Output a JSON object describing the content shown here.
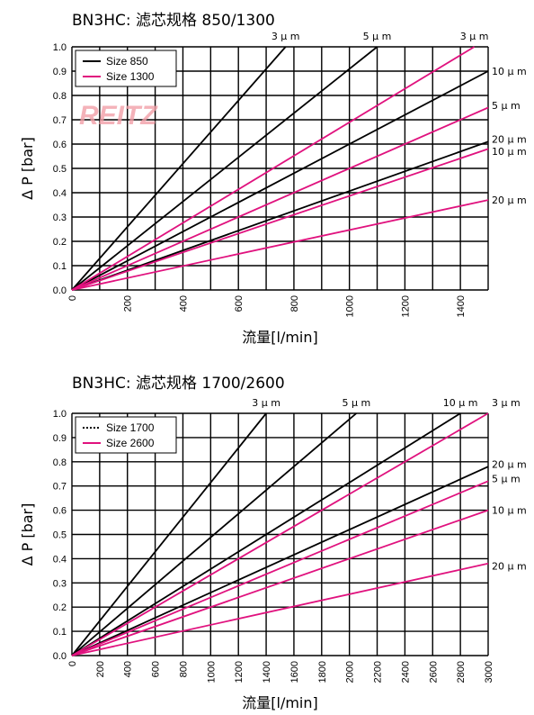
{
  "colors": {
    "black_series": "#000000",
    "pink_series": "#e0127e",
    "watermark": "#f2a0a8"
  },
  "watermark": "REITZ",
  "chart_data": [
    {
      "type": "line",
      "title": "BN3HC: 滤芯规格 850/1300",
      "xlabel": "流量[l/min]",
      "ylabel": "Δ P [bar]",
      "xlim": [
        0,
        1500
      ],
      "ylim": [
        0,
        1.0
      ],
      "x_ticks": [
        0,
        200,
        400,
        600,
        800,
        1000,
        1200,
        1400
      ],
      "x_grid_step": 100,
      "y_ticks": [
        0.0,
        0.1,
        0.2,
        0.3,
        0.4,
        0.5,
        0.6,
        0.7,
        0.8,
        0.9,
        1.0
      ],
      "legend": {
        "placement": "top-left",
        "entries": [
          {
            "name": "Size 850",
            "color": "#000000",
            "style": "solid"
          },
          {
            "name": "Size 1300",
            "color": "#e0127e",
            "style": "solid"
          }
        ]
      },
      "series": [
        {
          "name": "Size 850",
          "label": "3 μ m",
          "color": "#000000",
          "x": [
            0,
            770
          ],
          "y": [
            0,
            1.0
          ]
        },
        {
          "name": "Size 850",
          "label": "5 μ m",
          "color": "#000000",
          "x": [
            0,
            1100
          ],
          "y": [
            0,
            1.0
          ]
        },
        {
          "name": "Size 850",
          "label": "10 μ m",
          "color": "#000000",
          "x": [
            0,
            1500
          ],
          "y": [
            0,
            0.9
          ]
        },
        {
          "name": "Size 850",
          "label": "20 μ m",
          "color": "#000000",
          "x": [
            0,
            1500
          ],
          "y": [
            0,
            0.61
          ]
        },
        {
          "name": "Size 1300",
          "label": "3 μ m",
          "color": "#e0127e",
          "x": [
            0,
            1450
          ],
          "y": [
            0,
            1.0
          ]
        },
        {
          "name": "Size 1300",
          "label": "5 μ m",
          "color": "#e0127e",
          "x": [
            0,
            1500
          ],
          "y": [
            0,
            0.75
          ]
        },
        {
          "name": "Size 1300",
          "label": "10 μ m",
          "color": "#e0127e",
          "x": [
            0,
            1500
          ],
          "y": [
            0,
            0.58
          ]
        },
        {
          "name": "Size 1300",
          "label": "20 μ m",
          "color": "#e0127e",
          "x": [
            0,
            1500
          ],
          "y": [
            0,
            0.37
          ]
        }
      ],
      "series_labels": [
        {
          "text": "3 μ m",
          "x": 770,
          "y": 1.04
        },
        {
          "text": "5 μ m",
          "x": 1100,
          "y": 1.04
        },
        {
          "text": "3 μ m",
          "x": 1450,
          "y": 1.04
        },
        {
          "text": "10 μ m",
          "x": 1500,
          "y": 0.9
        },
        {
          "text": "5 μ m",
          "x": 1500,
          "y": 0.76
        },
        {
          "text": "20 μ m",
          "x": 1500,
          "y": 0.62
        },
        {
          "text": "10 μ m",
          "x": 1500,
          "y": 0.57
        },
        {
          "text": "20 μ m",
          "x": 1500,
          "y": 0.37
        }
      ]
    },
    {
      "type": "line",
      "title": "BN3HC: 滤芯规格 1700/2600",
      "xlabel": "流量[l/min]",
      "ylabel": "Δ P [bar]",
      "xlim": [
        0,
        3000
      ],
      "ylim": [
        0,
        1.0
      ],
      "x_ticks": [
        0,
        200,
        400,
        600,
        800,
        1000,
        1200,
        1400,
        1600,
        1800,
        2000,
        2200,
        2400,
        2600,
        2800,
        3000
      ],
      "x_grid_step": 200,
      "y_ticks": [
        0.0,
        0.1,
        0.2,
        0.3,
        0.4,
        0.5,
        0.6,
        0.7,
        0.8,
        0.9,
        1.0
      ],
      "legend": {
        "placement": "top-left",
        "entries": [
          {
            "name": "Size 1700",
            "color": "#000000",
            "style": "dotted"
          },
          {
            "name": "Size 2600",
            "color": "#e0127e",
            "style": "solid"
          }
        ]
      },
      "series": [
        {
          "name": "Size 1700",
          "label": "3 μ m",
          "color": "#000000",
          "x": [
            0,
            1400
          ],
          "y": [
            0,
            1.0
          ]
        },
        {
          "name": "Size 1700",
          "label": "5 μ m",
          "color": "#000000",
          "x": [
            0,
            2050
          ],
          "y": [
            0,
            1.0
          ]
        },
        {
          "name": "Size 1700",
          "label": "10 μ m",
          "color": "#000000",
          "x": [
            0,
            2800
          ],
          "y": [
            0,
            1.0
          ]
        },
        {
          "name": "Size 1700",
          "label": "20 μ m",
          "color": "#000000",
          "x": [
            0,
            3000
          ],
          "y": [
            0,
            0.78
          ]
        },
        {
          "name": "Size 2600",
          "label": "3 μ m",
          "color": "#e0127e",
          "x": [
            0,
            3000
          ],
          "y": [
            0,
            1.0
          ]
        },
        {
          "name": "Size 2600",
          "label": "5 μ m",
          "color": "#e0127e",
          "x": [
            0,
            3000
          ],
          "y": [
            0,
            0.72
          ]
        },
        {
          "name": "Size 2600",
          "label": "10 μ m",
          "color": "#e0127e",
          "x": [
            0,
            3000
          ],
          "y": [
            0,
            0.6
          ]
        },
        {
          "name": "Size 2600",
          "label": "20 μ m",
          "color": "#e0127e",
          "x": [
            0,
            3000
          ],
          "y": [
            0,
            0.38
          ]
        }
      ],
      "series_labels": [
        {
          "text": "3 μ m",
          "x": 1400,
          "y": 1.04
        },
        {
          "text": "5 μ m",
          "x": 2050,
          "y": 1.04
        },
        {
          "text": "10 μ m",
          "x": 2800,
          "y": 1.04
        },
        {
          "text": "3 μ m",
          "x": 3000,
          "y": 1.04
        },
        {
          "text": "20 μ m",
          "x": 3000,
          "y": 0.79
        },
        {
          "text": "5 μ m",
          "x": 3000,
          "y": 0.73
        },
        {
          "text": "10 μ m",
          "x": 3000,
          "y": 0.6
        },
        {
          "text": "20 μ m",
          "x": 3000,
          "y": 0.37
        }
      ]
    }
  ]
}
